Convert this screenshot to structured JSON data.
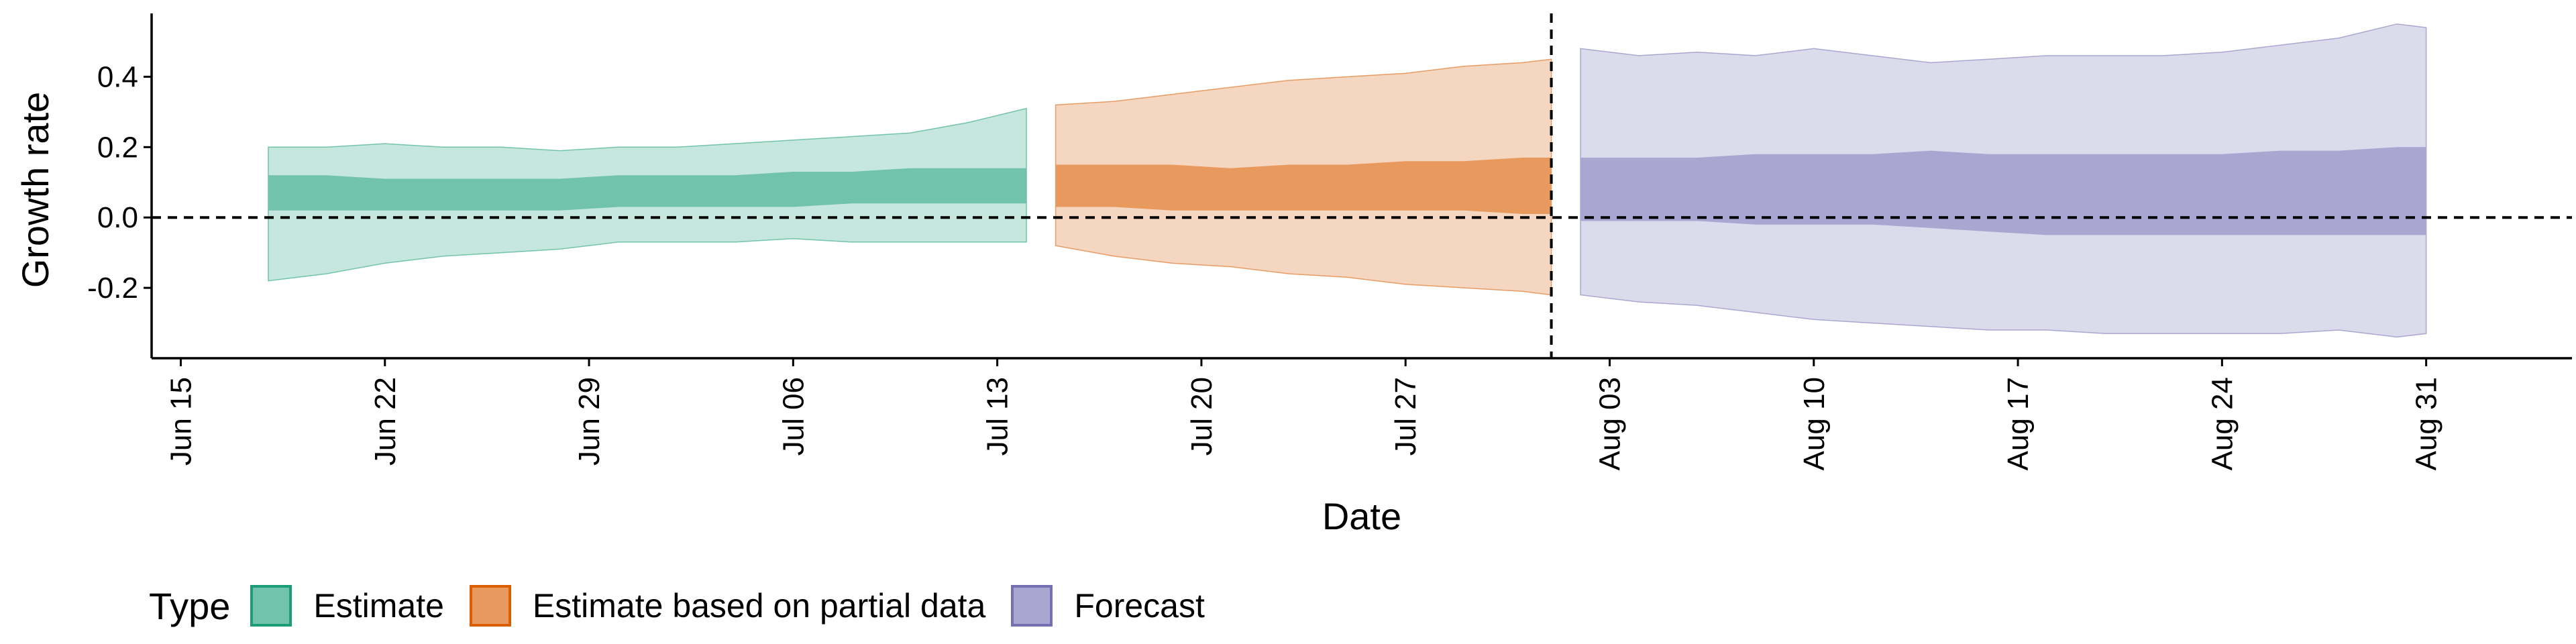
{
  "chart_data": {
    "type": "area",
    "title": "",
    "xlabel": "Date",
    "ylabel": "Growth rate",
    "ylim": [
      -0.4,
      0.58
    ],
    "yticks": [
      -0.2,
      0.0,
      0.2,
      0.4
    ],
    "ytick_labels": [
      "-0.2",
      "0.0",
      "0.2",
      "0.4"
    ],
    "xlim": [
      "2020-06-14",
      "2020-09-05"
    ],
    "xticks": [
      "2020-06-15",
      "2020-06-22",
      "2020-06-29",
      "2020-07-06",
      "2020-07-13",
      "2020-07-20",
      "2020-07-27",
      "2020-08-03",
      "2020-08-10",
      "2020-08-17",
      "2020-08-24",
      "2020-08-31"
    ],
    "xtick_labels": [
      "Jun 15",
      "Jun 22",
      "Jun 29",
      "Jul 06",
      "Jul 13",
      "Jul 20",
      "Jul 27",
      "Aug 03",
      "Aug 10",
      "Aug 17",
      "Aug 24",
      "Aug 31"
    ],
    "hline_y": 0,
    "vline_x": "2020-08-01",
    "grid": false,
    "legend_title": "Type",
    "legend_position": "bottom",
    "series": [
      {
        "name": "Estimate",
        "color": "#1b9e77",
        "inner_color": "#72c3ab",
        "outer_color": "#c5e7dd",
        "x": [
          "2020-06-18",
          "2020-06-20",
          "2020-06-22",
          "2020-06-24",
          "2020-06-26",
          "2020-06-28",
          "2020-06-30",
          "2020-07-02",
          "2020-07-04",
          "2020-07-06",
          "2020-07-08",
          "2020-07-10",
          "2020-07-12",
          "2020-07-14"
        ],
        "outer_lo": [
          -0.18,
          -0.16,
          -0.13,
          -0.11,
          -0.1,
          -0.09,
          -0.07,
          -0.07,
          -0.07,
          -0.06,
          -0.07,
          -0.07,
          -0.07,
          -0.07
        ],
        "outer_hi": [
          0.2,
          0.2,
          0.21,
          0.2,
          0.2,
          0.19,
          0.2,
          0.2,
          0.21,
          0.22,
          0.23,
          0.24,
          0.27,
          0.31
        ],
        "inner_lo": [
          0.02,
          0.02,
          0.02,
          0.02,
          0.02,
          0.02,
          0.03,
          0.03,
          0.03,
          0.03,
          0.04,
          0.04,
          0.04,
          0.04
        ],
        "inner_hi": [
          0.12,
          0.12,
          0.11,
          0.11,
          0.11,
          0.11,
          0.12,
          0.12,
          0.12,
          0.13,
          0.13,
          0.14,
          0.14,
          0.14
        ]
      },
      {
        "name": "Estimate based on partial data",
        "color": "#d95f02",
        "inner_color": "#e89a5e",
        "outer_color": "#f5d6c0",
        "x": [
          "2020-07-15",
          "2020-07-17",
          "2020-07-19",
          "2020-07-21",
          "2020-07-23",
          "2020-07-25",
          "2020-07-27",
          "2020-07-29",
          "2020-07-31",
          "2020-08-01"
        ],
        "outer_lo": [
          -0.08,
          -0.11,
          -0.13,
          -0.14,
          -0.16,
          -0.17,
          -0.19,
          -0.2,
          -0.21,
          -0.22
        ],
        "outer_hi": [
          0.32,
          0.33,
          0.35,
          0.37,
          0.39,
          0.4,
          0.41,
          0.43,
          0.44,
          0.45
        ],
        "inner_lo": [
          0.03,
          0.03,
          0.02,
          0.02,
          0.02,
          0.02,
          0.02,
          0.02,
          0.01,
          0.01
        ],
        "inner_hi": [
          0.15,
          0.15,
          0.15,
          0.14,
          0.15,
          0.15,
          0.16,
          0.16,
          0.17,
          0.17
        ]
      },
      {
        "name": "Forecast",
        "color": "#7570b3",
        "inner_color": "#a9a6d1",
        "outer_color": "#dcdbec",
        "x": [
          "2020-08-02",
          "2020-08-04",
          "2020-08-06",
          "2020-08-08",
          "2020-08-10",
          "2020-08-12",
          "2020-08-14",
          "2020-08-16",
          "2020-08-18",
          "2020-08-20",
          "2020-08-22",
          "2020-08-24",
          "2020-08-26",
          "2020-08-28",
          "2020-08-30",
          "2020-08-31"
        ],
        "outer_lo": [
          -0.22,
          -0.24,
          -0.25,
          -0.27,
          -0.29,
          -0.3,
          -0.31,
          -0.32,
          -0.32,
          -0.33,
          -0.33,
          -0.33,
          -0.33,
          -0.32,
          -0.34,
          -0.33
        ],
        "outer_hi": [
          0.48,
          0.46,
          0.47,
          0.46,
          0.48,
          0.46,
          0.44,
          0.45,
          0.46,
          0.46,
          0.46,
          0.47,
          0.49,
          0.51,
          0.55,
          0.54
        ],
        "inner_lo": [
          -0.01,
          -0.01,
          -0.01,
          -0.02,
          -0.02,
          -0.02,
          -0.03,
          -0.04,
          -0.05,
          -0.05,
          -0.05,
          -0.05,
          -0.05,
          -0.05,
          -0.05,
          -0.05
        ],
        "inner_hi": [
          0.17,
          0.17,
          0.17,
          0.18,
          0.18,
          0.18,
          0.19,
          0.18,
          0.18,
          0.18,
          0.18,
          0.18,
          0.19,
          0.19,
          0.2,
          0.2
        ]
      }
    ]
  }
}
